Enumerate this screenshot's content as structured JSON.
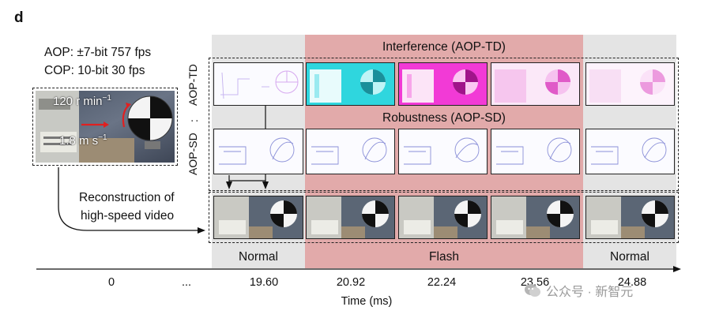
{
  "panel": {
    "label": "d"
  },
  "specs": {
    "aop": "AOP: ±7-bit 757 fps",
    "cop": "COP: 10-bit  30  fps"
  },
  "inset": {
    "speed_rot": "120 r min",
    "speed_rot_sup": "−1",
    "speed_lin": "1.8 m s",
    "speed_lin_sup": "−1"
  },
  "reconstruction": {
    "line1": "Reconstruction of",
    "line2": "high-speed video"
  },
  "rows": {
    "interference": "Interference (AOP-TD)",
    "robustness": "Robustness (AOP-SD)",
    "aop_td": "AOP-TD",
    "colon": ":",
    "aop_sd": "AOP-SD"
  },
  "segments": {
    "normal_left": "Normal",
    "flash": "Flash",
    "normal_right": "Normal"
  },
  "axis": {
    "title": "Time (ms)",
    "ticks": [
      "0",
      "...",
      "19.60",
      "20.92",
      "22.24",
      "23.56",
      "24.88"
    ]
  },
  "watermark": {
    "text": "公众号 · 新智元"
  },
  "colors": {
    "flash_band": "#e2aaaa",
    "normal_band": "#e4e4e4",
    "td_cyan": "#2fd6de",
    "td_magenta": "#f23ad6",
    "td_pink": "#f28ae6"
  },
  "icons": {
    "watermark_logo": "wechat-logo-icon"
  }
}
